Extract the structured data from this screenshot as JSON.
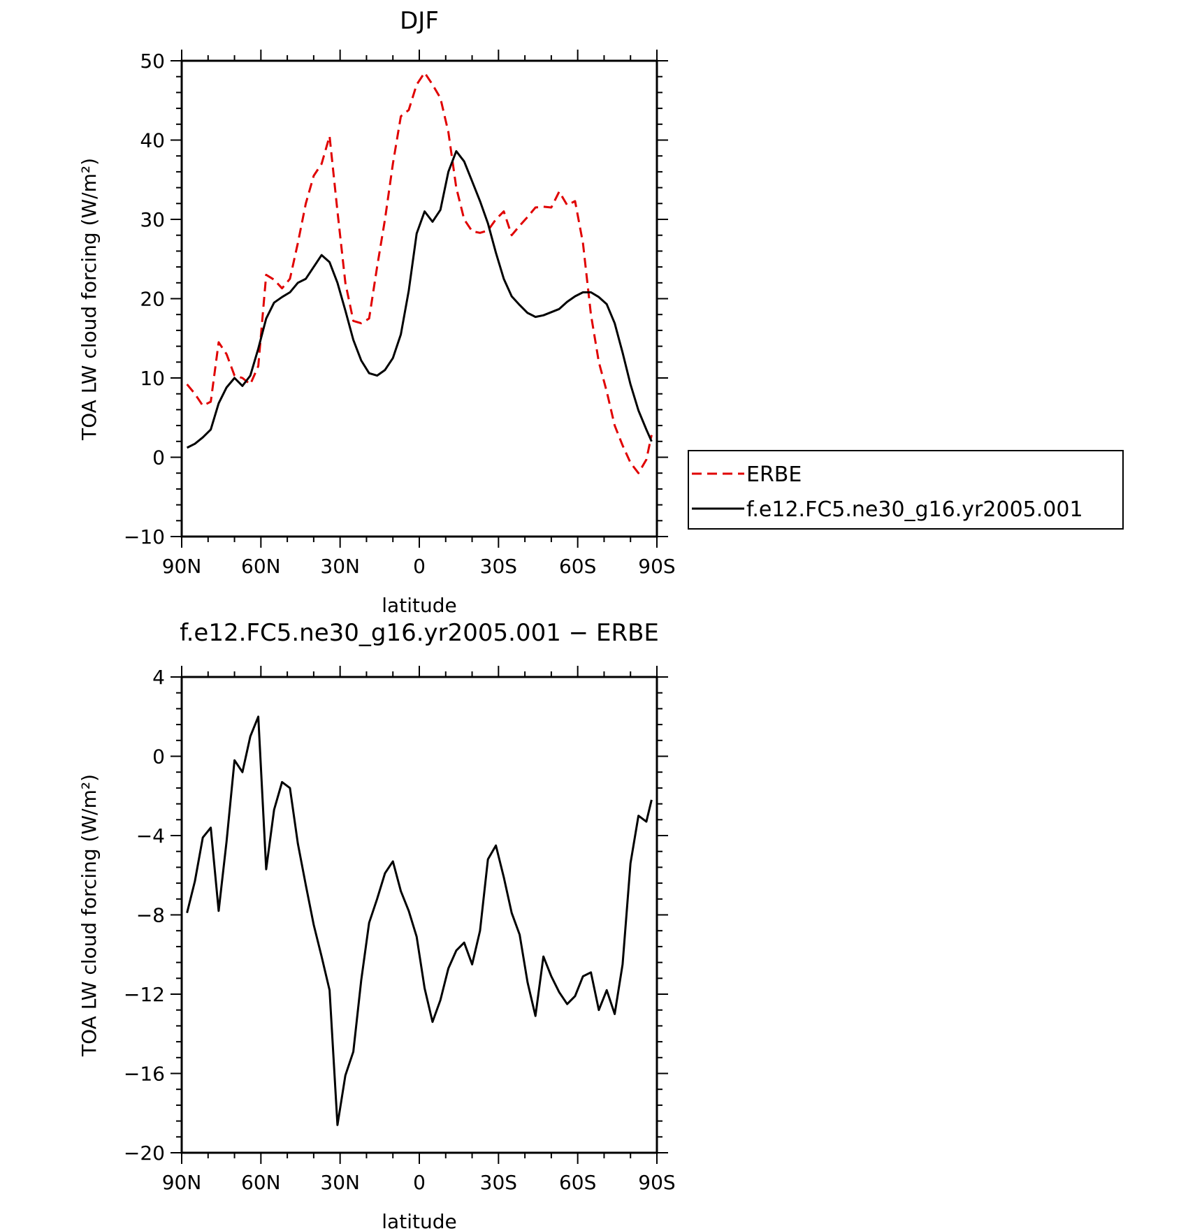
{
  "charts": [
    {
      "type": "line",
      "title": "DJF",
      "xlabel": "latitude",
      "ylabel": "TOA LW cloud forcing (W/m²)",
      "ylim": [
        -10,
        50
      ],
      "xlim": [
        -90,
        90
      ],
      "yticks": [
        {
          "value": -10,
          "label": "−10"
        },
        {
          "value": 0,
          "label": "0"
        },
        {
          "value": 10,
          "label": "10"
        },
        {
          "value": 20,
          "label": "20"
        },
        {
          "value": 30,
          "label": "30"
        },
        {
          "value": 40,
          "label": "40"
        },
        {
          "value": 50,
          "label": "50"
        }
      ],
      "xticks": [
        {
          "value": -90,
          "label": "90N"
        },
        {
          "value": -60,
          "label": "60N"
        },
        {
          "value": -30,
          "label": "30N"
        },
        {
          "value": 0,
          "label": "0"
        },
        {
          "value": 30,
          "label": "30S"
        },
        {
          "value": 60,
          "label": "60S"
        },
        {
          "value": 90,
          "label": "90S"
        }
      ],
      "legend": {
        "placement": "right"
      },
      "series": [
        {
          "name": "ERBE",
          "color": "#e00000",
          "dash": true,
          "x": [
            -88,
            -85,
            -82,
            -79,
            -76,
            -73,
            -70,
            -67,
            -64,
            -61,
            -58,
            -55,
            -52,
            -49,
            -46,
            -43,
            -40,
            -37,
            -34,
            -31,
            -28,
            -25,
            -22,
            -19,
            -16,
            -13,
            -10,
            -7,
            -4,
            -1,
            2,
            5,
            8,
            11,
            14,
            17,
            20,
            23,
            26,
            29,
            32,
            35,
            38,
            41,
            44,
            47,
            50,
            53,
            56,
            59,
            62,
            65,
            68,
            71,
            74,
            77,
            80,
            83,
            86,
            88
          ],
          "y": [
            9.2,
            8,
            6.5,
            7,
            14.5,
            13,
            10.3,
            10,
            9.2,
            11.5,
            23,
            22.4,
            21.3,
            22.5,
            27,
            32,
            35.5,
            37,
            40.5,
            31,
            22,
            17.2,
            16.9,
            17.5,
            24,
            30,
            37,
            43,
            43.8,
            47,
            48.5,
            47,
            45.3,
            41,
            34,
            30,
            28.5,
            28.3,
            28.6,
            30,
            31,
            28,
            29.2,
            30.3,
            31.5,
            31.6,
            31.5,
            33.5,
            31.8,
            32.3,
            27,
            18,
            12,
            8.3,
            4,
            1.5,
            -0.7,
            -2,
            -0.3,
            2.8
          ]
        },
        {
          "name": "f.e12.FC5.ne30_g16.yr2005.001",
          "color": "#000000",
          "dash": false,
          "x": [
            -88,
            -85,
            -82,
            -79,
            -76,
            -73,
            -70,
            -67,
            -64,
            -61,
            -58,
            -55,
            -52,
            -49,
            -46,
            -43,
            -40,
            -37,
            -34,
            -31,
            -28,
            -25,
            -22,
            -19,
            -16,
            -13,
            -10,
            -7,
            -4,
            -1,
            2,
            5,
            8,
            11,
            14,
            17,
            20,
            23,
            26,
            29,
            32,
            35,
            38,
            41,
            44,
            47,
            50,
            53,
            56,
            59,
            62,
            65,
            68,
            71,
            74,
            77,
            80,
            83,
            86,
            88
          ],
          "y": [
            1.2,
            1.7,
            2.5,
            3.5,
            6.8,
            8.8,
            10,
            9,
            10.3,
            13.7,
            17.5,
            19.5,
            20.2,
            20.8,
            22,
            22.5,
            24,
            25.5,
            24.6,
            22,
            18.5,
            14.8,
            12.2,
            10.6,
            10.3,
            11,
            12.5,
            15.5,
            21,
            28.2,
            31,
            29.7,
            31.2,
            36,
            38.6,
            37.3,
            34.8,
            32.3,
            29.5,
            25.8,
            22.5,
            20.3,
            19.2,
            18.2,
            17.7,
            17.9,
            18.3,
            18.7,
            19.6,
            20.3,
            20.8,
            20.8,
            20.2,
            19.3,
            16.9,
            13.2,
            9.2,
            5.9,
            3.5,
            2
          ]
        }
      ]
    },
    {
      "type": "line",
      "title": "f.e12.FC5.ne30_g16.yr2005.001 − ERBE",
      "xlabel": "latitude",
      "ylabel": "TOA LW cloud forcing (W/m²)",
      "ylim": [
        -20,
        4
      ],
      "xlim": [
        -90,
        90
      ],
      "yticks": [
        {
          "value": -20,
          "label": "−20"
        },
        {
          "value": -16,
          "label": "−16"
        },
        {
          "value": -12,
          "label": "−12"
        },
        {
          "value": -8,
          "label": "−8"
        },
        {
          "value": -4,
          "label": "−4"
        },
        {
          "value": 0,
          "label": "0"
        },
        {
          "value": 4,
          "label": "4"
        }
      ],
      "xticks": [
        {
          "value": -90,
          "label": "90N"
        },
        {
          "value": -60,
          "label": "60N"
        },
        {
          "value": -30,
          "label": "30N"
        },
        {
          "value": 0,
          "label": "0"
        },
        {
          "value": 30,
          "label": "30S"
        },
        {
          "value": 60,
          "label": "60S"
        },
        {
          "value": 90,
          "label": "90S"
        }
      ],
      "series": [
        {
          "name": "",
          "color": "#000000",
          "dash": false,
          "x": [
            -88,
            -85,
            -82,
            -79,
            -76,
            -73,
            -70,
            -67,
            -64,
            -61,
            -58,
            -55,
            -52,
            -49,
            -46,
            -43,
            -40,
            -37,
            -34,
            -31,
            -28,
            -25,
            -22,
            -19,
            -16,
            -13,
            -10,
            -7,
            -4,
            -1,
            2,
            5,
            8,
            11,
            14,
            17,
            20,
            23,
            26,
            29,
            32,
            35,
            38,
            41,
            44,
            47,
            50,
            53,
            56,
            59,
            62,
            65,
            68,
            71,
            74,
            77,
            80,
            83,
            86,
            88
          ],
          "y": [
            -7.9,
            -6.3,
            -4.1,
            -3.6,
            -7.8,
            -4.3,
            -0.2,
            -0.8,
            1,
            2,
            -5.7,
            -2.7,
            -1.3,
            -1.6,
            -4.4,
            -6.5,
            -8.5,
            -10.1,
            -11.8,
            -18.6,
            -16.1,
            -14.9,
            -11.3,
            -8.4,
            -7.2,
            -5.9,
            -5.3,
            -6.8,
            -7.8,
            -9.1,
            -11.7,
            -13.4,
            -12.3,
            -10.7,
            -9.8,
            -9.4,
            -10.5,
            -8.8,
            -5.2,
            -4.5,
            -6.1,
            -7.9,
            -9,
            -11.4,
            -13.1,
            -10.1,
            -11.1,
            -11.9,
            -12.5,
            -12.1,
            -11.1,
            -10.9,
            -12.8,
            -11.8,
            -13,
            -10.5,
            -5.4,
            -3,
            -3.3,
            -2.2
          ]
        }
      ]
    }
  ]
}
